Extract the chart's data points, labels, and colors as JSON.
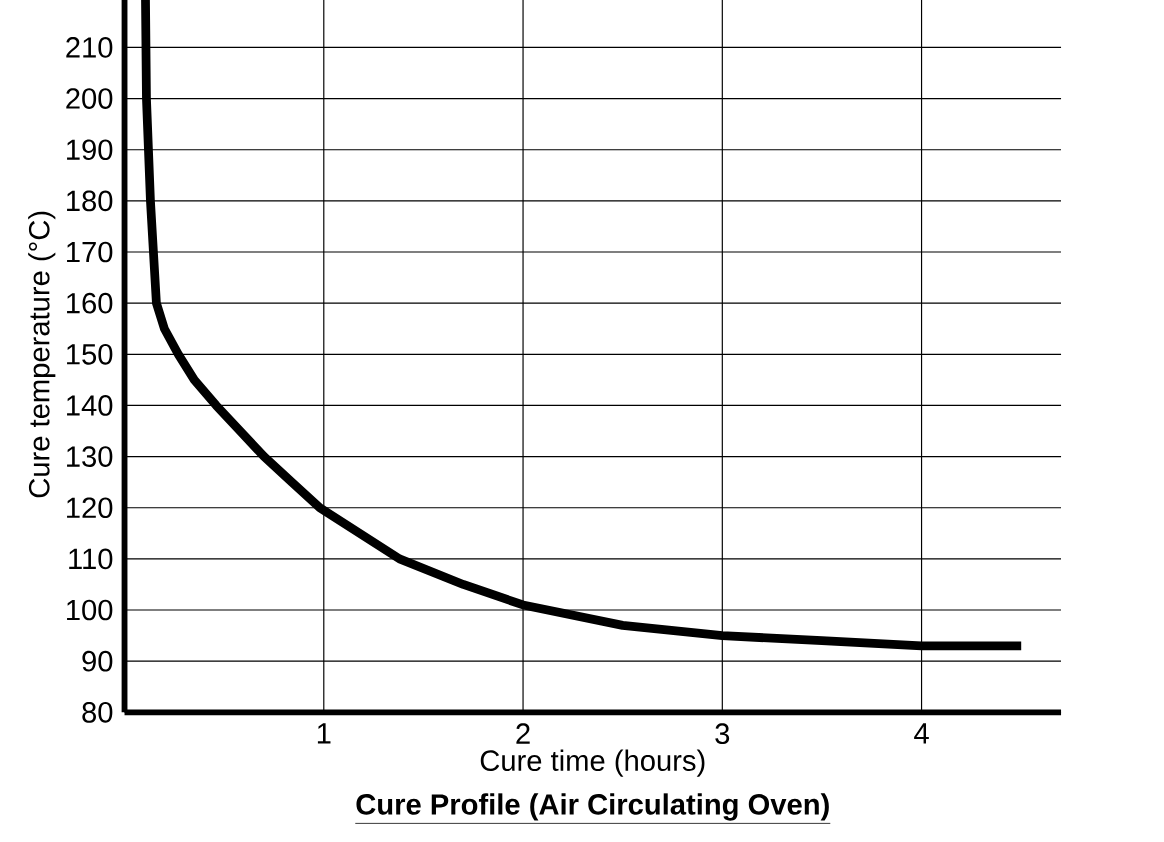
{
  "chart_data": {
    "type": "line",
    "title": "Cure Profile (Air Circulating Oven)",
    "xlabel": "Cure time (hours)",
    "ylabel": "Cure temperature (°C)",
    "x": [
      0.105,
      0.11,
      0.13,
      0.16,
      0.2,
      0.27,
      0.35,
      0.46,
      0.58,
      0.7,
      0.84,
      0.98,
      1.18,
      1.38,
      1.7,
      2.0,
      2.5,
      3.0,
      3.5,
      4.0,
      4.5
    ],
    "values": [
      220,
      200,
      180,
      160,
      155,
      150,
      145,
      140,
      135,
      130,
      125,
      120,
      115,
      110,
      105,
      101,
      97,
      95,
      94,
      93,
      93
    ],
    "color": "#000000",
    "xlim": [
      0,
      4.7
    ],
    "ylim": [
      80,
      220
    ],
    "xticks": [
      1,
      2,
      3,
      4
    ],
    "yticks": [
      80,
      90,
      100,
      110,
      120,
      130,
      140,
      150,
      160,
      170,
      180,
      190,
      200,
      210
    ],
    "grid": true,
    "marker": "none",
    "line_style": "solid"
  }
}
